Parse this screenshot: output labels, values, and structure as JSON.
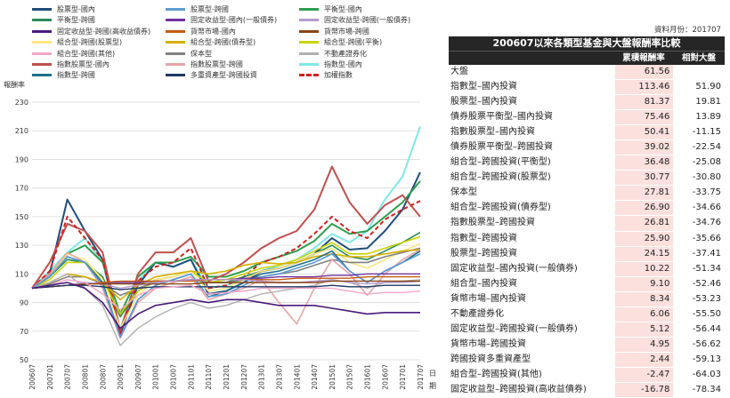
{
  "legend": [
    {
      "label": "股票型-國內",
      "color": "#1f4e79",
      "dashed": false
    },
    {
      "label": "股票型-跨國",
      "color": "#5b9bd5",
      "dashed": false
    },
    {
      "label": "平衡型-國內",
      "color": "#2e9e4e",
      "dashed": false
    },
    {
      "label": "平衡型-跨國",
      "color": "#2d8b57",
      "dashed": false
    },
    {
      "label": "固定收益型-國內(一般債券)",
      "color": "#7030a0",
      "dashed": false
    },
    {
      "label": "固定收益型-跨國(一般債券)",
      "color": "#b59bd1",
      "dashed": false
    },
    {
      "label": "固定收益型-跨國(高收益債券)",
      "color": "#4b1a7a",
      "dashed": false
    },
    {
      "label": "貨幣市場-國內",
      "color": "#c55a11",
      "dashed": false
    },
    {
      "label": "貨幣市場-跨國",
      "color": "#8b4513",
      "dashed": false
    },
    {
      "label": "組合型-跨國(股票型)",
      "color": "#ffe680",
      "dashed": false
    },
    {
      "label": "組合型-跨國(債券型)",
      "color": "#d4b000",
      "dashed": false
    },
    {
      "label": "組合型-跨國(平衡)",
      "color": "#c9d400",
      "dashed": false
    },
    {
      "label": "組合型-跨國(其他)",
      "color": "#f4a6c8",
      "dashed": false
    },
    {
      "label": "保本型",
      "color": "#808080",
      "dashed": false
    },
    {
      "label": "不動產證券化",
      "color": "#b0b0b0",
      "dashed": false
    },
    {
      "label": "指數股票型-國內",
      "color": "#c0504d",
      "dashed": false
    },
    {
      "label": "指數股票型-跨國",
      "color": "#e6a5a5",
      "dashed": false
    },
    {
      "label": "指數型-國內",
      "color": "#7fe8e8",
      "dashed": false
    },
    {
      "label": "指數型-跨國",
      "color": "#1f6f8b",
      "dashed": false
    },
    {
      "label": "多重資產型-跨國投資",
      "color": "#1f3864",
      "dashed": false
    },
    {
      "label": "加權指數",
      "color": "#d42020",
      "dashed": true
    }
  ],
  "date_label": "資料月份：201707",
  "table": {
    "title": "200607以來各類型基金與大盤報酬率比較",
    "col_return": "累積報酬率",
    "col_relative": "相對大盤",
    "rows": [
      {
        "name": "大盤",
        "ret": "61.56",
        "rel": ""
      },
      {
        "name": "指數型–國內投資",
        "ret": "113.46",
        "rel": "51.90"
      },
      {
        "name": "股票型–國內投資",
        "ret": "81.37",
        "rel": "19.81"
      },
      {
        "name": "債券股票平衡型–國內投資",
        "ret": "75.46",
        "rel": "13.89"
      },
      {
        "name": "指數股票型–國內投資",
        "ret": "50.41",
        "rel": "-11.15"
      },
      {
        "name": "債券股票平衡型–跨國投資",
        "ret": "39.02",
        "rel": "-22.54"
      },
      {
        "name": "組合型–跨國投資(平衡型)",
        "ret": "36.48",
        "rel": "-25.08"
      },
      {
        "name": "組合型–跨國投資(股票型)",
        "ret": "30.77",
        "rel": "-30.80"
      },
      {
        "name": "保本型",
        "ret": "27.81",
        "rel": "-33.75"
      },
      {
        "name": "組合型–跨國投資(債券型)",
        "ret": "26.90",
        "rel": "-34.66"
      },
      {
        "name": "指數股票型–跨國投資",
        "ret": "26.81",
        "rel": "-34.76"
      },
      {
        "name": "指數型–跨國投資",
        "ret": "25.90",
        "rel": "-35.66"
      },
      {
        "name": "股票型–跨國投資",
        "ret": "24.15",
        "rel": "-37.41"
      },
      {
        "name": "固定收益型–國內投資(一般債券)",
        "ret": "10.22",
        "rel": "-51.34"
      },
      {
        "name": "組合型–國內投資",
        "ret": "9.10",
        "rel": "-52.46"
      },
      {
        "name": "貨幣市場–國內投資",
        "ret": "8.34",
        "rel": "-53.23"
      },
      {
        "name": "不動產證券化",
        "ret": "6.06",
        "rel": "-55.50"
      },
      {
        "name": "固定收益型–跨國投資(一般債券)",
        "ret": "5.12",
        "rel": "-56.44"
      },
      {
        "name": "貨幣市場–跨國投資",
        "ret": "4.95",
        "rel": "-56.62"
      },
      {
        "name": "跨國投資多重資產型",
        "ret": "2.44",
        "rel": "-59.13"
      },
      {
        "name": "組合型–跨國投資(其他)",
        "ret": "-2.47",
        "rel": "-64.03"
      },
      {
        "name": "固定收益型–跨國投資(高收益債券)",
        "ret": "-16.78",
        "rel": "-78.34"
      }
    ]
  },
  "chart_data": {
    "type": "line",
    "ylabel": "報酬率",
    "xlabel": "日期",
    "ylim": [
      50,
      230
    ],
    "yticks": [
      50,
      70,
      90,
      110,
      130,
      150,
      170,
      190,
      210,
      230
    ],
    "grid": true,
    "xticks": [
      "200607",
      "200701",
      "200707",
      "200801",
      "200807",
      "200901",
      "200907",
      "201001",
      "201007",
      "201101",
      "201107",
      "201201",
      "201207",
      "201301",
      "201307",
      "201401",
      "201407",
      "201501",
      "201507",
      "201601",
      "201607",
      "201701",
      "201707"
    ],
    "series": [
      {
        "name": "指數型-國內",
        "color": "#7fe8e8",
        "width": 2,
        "dashed": false,
        "values": [
          100,
          112,
          125,
          135,
          118,
          72,
          105,
          118,
          115,
          120,
          100,
          102,
          106,
          112,
          116,
          120,
          128,
          138,
          132,
          140,
          162,
          178,
          213
        ]
      },
      {
        "name": "股票型-國內",
        "color": "#1f4e79",
        "width": 2,
        "dashed": false,
        "values": [
          100,
          110,
          162,
          140,
          120,
          68,
          102,
          118,
          115,
          120,
          96,
          98,
          104,
          112,
          114,
          118,
          124,
          135,
          127,
          128,
          140,
          155,
          181
        ]
      },
      {
        "name": "平衡型-國內",
        "color": "#2e9e4e",
        "width": 2,
        "dashed": false,
        "values": [
          100,
          108,
          124,
          130,
          118,
          82,
          108,
          118,
          118,
          122,
          108,
          108,
          112,
          118,
          122,
          126,
          133,
          145,
          138,
          140,
          150,
          160,
          175
        ]
      },
      {
        "name": "指數股票型-國內",
        "color": "#c0504d",
        "width": 2,
        "dashed": false,
        "values": [
          100,
          118,
          145,
          140,
          125,
          70,
          110,
          125,
          125,
          135,
          105,
          110,
          118,
          128,
          135,
          140,
          155,
          185,
          160,
          145,
          158,
          165,
          150
        ]
      },
      {
        "name": "加權指數",
        "color": "#d42020",
        "width": 2,
        "dashed": true,
        "values": [
          100,
          112,
          150,
          135,
          120,
          68,
          105,
          115,
          118,
          128,
          100,
          102,
          108,
          118,
          122,
          128,
          138,
          150,
          140,
          135,
          148,
          155,
          161
        ]
      },
      {
        "name": "平衡型-跨國",
        "color": "#2d8b57",
        "width": 1.6,
        "dashed": false,
        "values": [
          100,
          108,
          120,
          118,
          108,
          80,
          98,
          106,
          108,
          112,
          104,
          104,
          108,
          112,
          114,
          118,
          124,
          130,
          122,
          120,
          126,
          132,
          139
        ]
      },
      {
        "name": "組合型-跨國(平衡)",
        "color": "#c9d400",
        "width": 1.6,
        "dashed": false,
        "values": [
          100,
          106,
          118,
          118,
          106,
          82,
          98,
          106,
          108,
          112,
          104,
          106,
          110,
          114,
          116,
          120,
          126,
          132,
          124,
          124,
          128,
          132,
          136
        ]
      },
      {
        "name": "組合型-跨國(股票型)",
        "color": "#ffe680",
        "width": 1.6,
        "dashed": false,
        "values": [
          100,
          108,
          124,
          120,
          106,
          72,
          95,
          106,
          108,
          112,
          98,
          100,
          106,
          112,
          114,
          118,
          124,
          128,
          118,
          114,
          120,
          126,
          131
        ]
      },
      {
        "name": "保本型",
        "color": "#808080",
        "width": 1.6,
        "dashed": false,
        "values": [
          100,
          103,
          108,
          108,
          103,
          95,
          100,
          104,
          105,
          106,
          104,
          104,
          106,
          108,
          110,
          112,
          116,
          120,
          118,
          118,
          122,
          125,
          128
        ]
      },
      {
        "name": "組合型-跨國(債券型)",
        "color": "#d4b000",
        "width": 1.6,
        "dashed": false,
        "values": [
          100,
          104,
          110,
          108,
          104,
          92,
          102,
          108,
          110,
          112,
          110,
          112,
          116,
          118,
          117,
          118,
          122,
          124,
          122,
          122,
          124,
          126,
          127
        ]
      },
      {
        "name": "指數股票型-跨國",
        "color": "#e6a5a5",
        "width": 1.6,
        "dashed": false,
        "values": [
          100,
          110,
          125,
          118,
          100,
          65,
          90,
          100,
          104,
          108,
          92,
          96,
          100,
          106,
          90,
          75,
          100,
          120,
          110,
          95,
          110,
          120,
          127
        ]
      },
      {
        "name": "指數型-跨國",
        "color": "#1f6f8b",
        "width": 1.6,
        "dashed": false,
        "values": [
          100,
          108,
          122,
          118,
          104,
          66,
          92,
          102,
          106,
          110,
          94,
          98,
          104,
          110,
          112,
          116,
          120,
          126,
          112,
          104,
          112,
          118,
          126
        ]
      },
      {
        "name": "股票型-跨國",
        "color": "#5b9bd5",
        "width": 1.6,
        "dashed": false,
        "values": [
          100,
          108,
          122,
          118,
          102,
          66,
          92,
          102,
          106,
          110,
          94,
          96,
          102,
          108,
          110,
          114,
          118,
          124,
          112,
          104,
          112,
          118,
          124
        ]
      },
      {
        "name": "固定收益型-國內(一般債券)",
        "color": "#7030a0",
        "width": 1.4,
        "dashed": false,
        "values": [
          100,
          101,
          102,
          103,
          104,
          104,
          104,
          105,
          105,
          106,
          106,
          106,
          107,
          107,
          108,
          108,
          108,
          109,
          109,
          110,
          110,
          110,
          110
        ]
      },
      {
        "name": "貨幣市場-國內",
        "color": "#c55a11",
        "width": 1.4,
        "dashed": false,
        "values": [
          100,
          101,
          102,
          103,
          104,
          105,
          105,
          105,
          105,
          105,
          106,
          106,
          106,
          106,
          106,
          107,
          107,
          107,
          107,
          108,
          108,
          108,
          108
        ]
      },
      {
        "name": "不動產證券化",
        "color": "#b0b0b0",
        "width": 1.4,
        "dashed": false,
        "values": [
          100,
          104,
          110,
          100,
          88,
          60,
          72,
          80,
          86,
          90,
          86,
          88,
          92,
          96,
          98,
          100,
          102,
          106,
          104,
          100,
          104,
          105,
          106
        ]
      },
      {
        "name": "固定收益型-跨國(一般債券)",
        "color": "#b59bd1",
        "width": 1.4,
        "dashed": false,
        "values": [
          100,
          101,
          102,
          104,
          103,
          100,
          102,
          104,
          105,
          106,
          106,
          106,
          106,
          105,
          104,
          104,
          105,
          106,
          104,
          103,
          104,
          104,
          105
        ]
      },
      {
        "name": "貨幣市場-跨國",
        "color": "#8b4513",
        "width": 1.4,
        "dashed": false,
        "values": [
          100,
          101,
          102,
          103,
          103,
          103,
          103,
          103,
          103,
          103,
          104,
          104,
          104,
          104,
          104,
          104,
          104,
          105,
          105,
          105,
          105,
          105,
          105
        ]
      },
      {
        "name": "多重資產型-跨國投資",
        "color": "#1f3864",
        "width": 1.4,
        "dashed": false,
        "values": [
          100,
          101,
          102,
          102,
          101,
          99,
          100,
          101,
          101,
          101,
          101,
          101,
          101,
          101,
          101,
          101,
          101,
          102,
          101,
          101,
          102,
          102,
          102
        ]
      },
      {
        "name": "組合型-跨國(其他)",
        "color": "#f4a6c8",
        "width": 1.4,
        "dashed": false,
        "values": [
          100,
          102,
          106,
          104,
          96,
          85,
          95,
          100,
          101,
          102,
          96,
          97,
          98,
          100,
          100,
          100,
          100,
          100,
          98,
          96,
          97,
          97,
          98
        ]
      },
      {
        "name": "固定收益型-跨國(高收益債券)",
        "color": "#4b1a7a",
        "width": 1.6,
        "dashed": false,
        "values": [
          100,
          102,
          104,
          100,
          90,
          72,
          82,
          88,
          90,
          92,
          90,
          92,
          92,
          90,
          88,
          88,
          88,
          86,
          84,
          82,
          83,
          83,
          83
        ]
      }
    ]
  }
}
